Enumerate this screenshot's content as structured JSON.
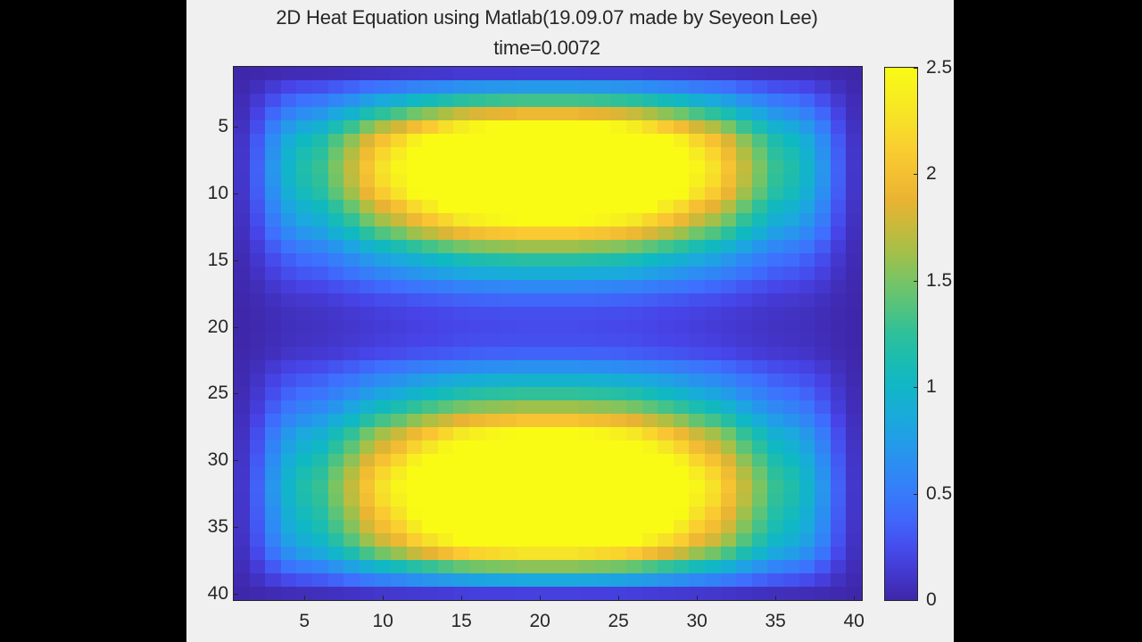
{
  "figure": {
    "title_line1": "2D Heat Equation using Matlab(19.09.07 made by Seyeon Lee)",
    "title_line2": "time=0.0072"
  },
  "chart_data": {
    "type": "heatmap",
    "title": "2D Heat Equation using Matlab(19.09.07 made by Seyeon Lee) time=0.0072",
    "xlabel": "",
    "ylabel": "",
    "grid_size": [
      40,
      40
    ],
    "x_ticks": [
      5,
      10,
      15,
      20,
      25,
      30,
      35,
      40
    ],
    "y_ticks": [
      5,
      10,
      15,
      20,
      25,
      30,
      35,
      40
    ],
    "xlim": [
      0.5,
      40.5
    ],
    "ylim": [
      0.5,
      40.5
    ],
    "y_direction": "reverse",
    "colormap": "parula",
    "clim": [
      0,
      2.5
    ],
    "colorbar_ticks": [
      0,
      0.5,
      1,
      1.5,
      2,
      2.5
    ],
    "colorbar_tick_labels": [
      "0",
      "0.5",
      "1",
      "1.5",
      "2",
      "2.5"
    ],
    "description": "value(row,col) = min(row_profile[row] * col_profile[col], 2.5); two hot lobes centered near rows 8 and 32, columns 14-27 saturated",
    "row_profile": [
      0.12,
      0.6,
      1.1,
      1.6,
      2.15,
      2.6,
      2.8,
      2.9,
      2.85,
      2.7,
      2.4,
      2.1,
      1.75,
      1.35,
      1.0,
      0.75,
      0.5,
      0.32,
      0.22,
      0.2,
      0.22,
      0.3,
      0.55,
      0.8,
      1.05,
      1.35,
      1.7,
      2.1,
      2.35,
      2.6,
      2.8,
      2.9,
      2.85,
      2.7,
      2.55,
      2.3,
      1.9,
      1.3,
      0.7,
      0.15
    ],
    "col_profile": [
      0.04,
      0.12,
      0.24,
      0.34,
      0.4,
      0.44,
      0.52,
      0.6,
      0.7,
      0.78,
      0.84,
      0.92,
      0.98,
      1.04,
      1.1,
      1.14,
      1.16,
      1.18,
      1.2,
      1.2,
      1.2,
      1.2,
      1.18,
      1.16,
      1.14,
      1.1,
      1.04,
      0.98,
      0.92,
      0.84,
      0.78,
      0.7,
      0.6,
      0.52,
      0.44,
      0.4,
      0.34,
      0.24,
      0.12,
      0.04
    ]
  },
  "colors": {
    "background": "#000000",
    "figure_bg": "#f0f0f0",
    "text": "#262626",
    "parula_stops": [
      "#3e26a8",
      "#4744e8",
      "#3e6ffe",
      "#2d8cf3",
      "#1ba8df",
      "#0fb9c1",
      "#2ec09a",
      "#6bc56c",
      "#aebf42",
      "#e9b332",
      "#fbc832",
      "#f5e626",
      "#f9fb15"
    ]
  }
}
